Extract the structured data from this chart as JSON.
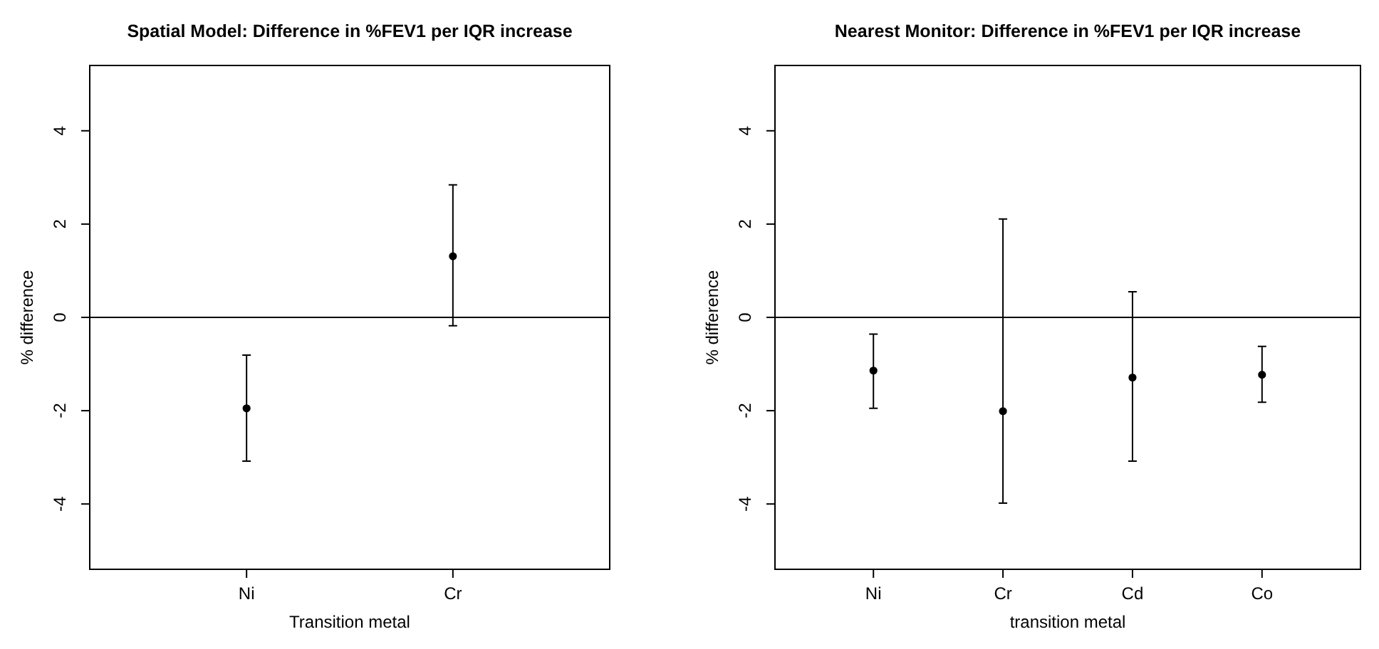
{
  "chart_data": [
    {
      "type": "scatter",
      "title": "Spatial Model: Difference in %FEV1 per IQR increase",
      "xlabel": "Transition metal",
      "ylabel": "% difference",
      "categories": [
        "Ni",
        "Cr"
      ],
      "series": [
        {
          "color": "#000000",
          "values": [
            -1.95,
            1.31
          ],
          "errors": [
            [
              -3.08,
              -0.81
            ],
            [
              -0.18,
              2.84
            ]
          ]
        }
      ],
      "ylim": [
        -5.4,
        5.4
      ],
      "yticks": [
        -4,
        -2,
        0,
        2,
        4
      ],
      "marker": "circle",
      "grid": false,
      "ref_lines": [
        {
          "axis": "y",
          "value": 0,
          "color": "#000000"
        }
      ]
    },
    {
      "type": "scatter",
      "title": "Nearest Monitor: Difference in %FEV1 per IQR increase",
      "xlabel": "transition metal",
      "ylabel": "% difference",
      "categories": [
        "Ni",
        "Cr",
        "Cd",
        "Co"
      ],
      "series": [
        {
          "color": "#000000",
          "values": [
            -1.14,
            -2.01,
            -1.29,
            -1.23
          ],
          "errors": [
            [
              -1.95,
              -0.36
            ],
            [
              -3.98,
              2.11
            ],
            [
              -3.08,
              0.55
            ],
            [
              -1.82,
              -0.62
            ]
          ]
        }
      ],
      "ylim": [
        -5.4,
        5.4
      ],
      "yticks": [
        -4,
        -2,
        0,
        2,
        4
      ],
      "marker": "circle",
      "grid": false,
      "ref_lines": [
        {
          "axis": "y",
          "value": 0,
          "color": "#000000"
        }
      ]
    }
  ]
}
